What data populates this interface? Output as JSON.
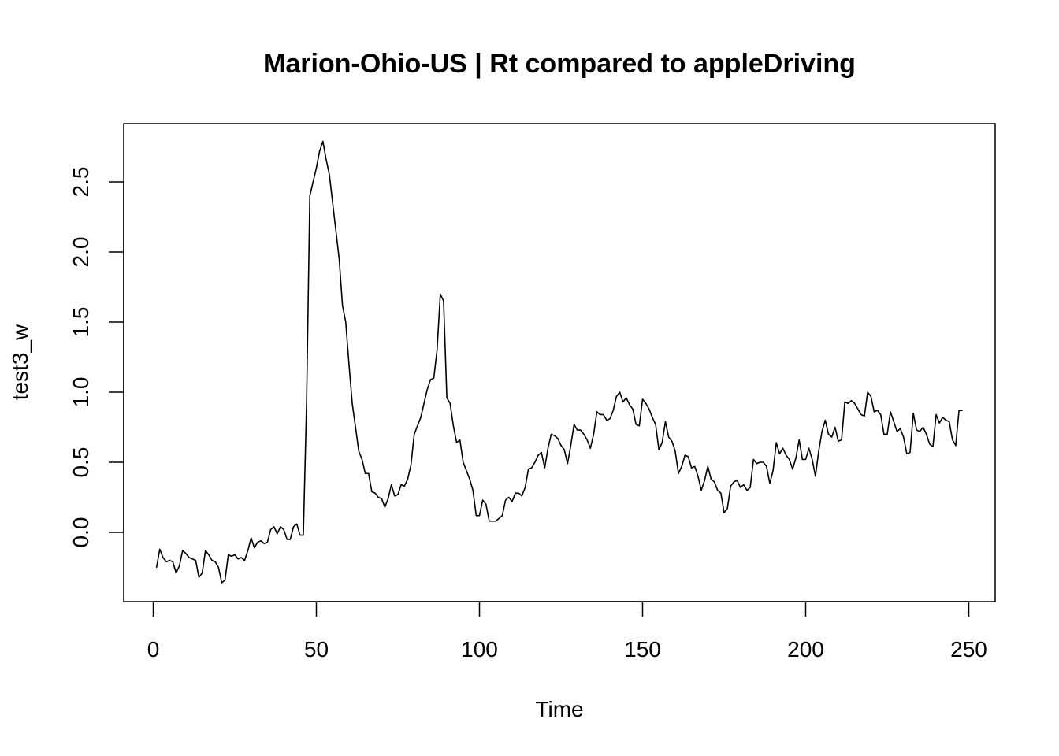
{
  "chart_data": {
    "type": "line",
    "title": "Marion-Ohio-US | Rt compared to appleDriving",
    "xlabel": "Time",
    "ylabel": "test3_w",
    "xlim": [
      0,
      250
    ],
    "ylim": [
      -0.35,
      2.8
    ],
    "x_ticks": [
      0,
      50,
      100,
      150,
      200,
      250
    ],
    "y_ticks": [
      0.0,
      0.5,
      1.0,
      1.5,
      2.0,
      2.5
    ],
    "x_tick_labels": [
      "0",
      "50",
      "100",
      "150",
      "200",
      "250"
    ],
    "y_tick_labels": [
      "0.0",
      "0.5",
      "1.0",
      "1.5",
      "2.0",
      "2.5"
    ],
    "grid": false,
    "legend": "none",
    "series": [
      {
        "color": "#000000",
        "x": [
          1,
          2,
          3,
          4,
          5,
          6,
          7,
          8,
          9,
          10,
          11,
          12,
          13,
          14,
          15,
          16,
          17,
          18,
          19,
          20,
          21,
          22,
          23,
          24,
          25,
          26,
          27,
          28,
          29,
          30,
          31,
          32,
          33,
          34,
          35,
          36,
          37,
          38,
          39,
          40,
          41,
          42,
          43,
          44,
          45,
          46,
          47,
          48,
          49,
          50,
          51,
          52,
          53,
          54,
          55,
          56,
          57,
          58,
          59,
          60,
          61,
          62,
          63,
          64,
          65,
          66,
          67,
          68,
          69,
          70,
          71,
          72,
          73,
          74,
          75,
          76,
          77,
          78,
          79,
          80,
          81,
          82,
          83,
          84,
          85,
          86,
          87,
          88,
          89,
          90,
          91,
          92,
          93,
          94,
          95,
          96,
          97,
          98,
          99,
          100,
          101,
          102,
          103,
          104,
          105,
          106,
          107,
          108,
          109,
          110,
          111,
          112,
          113,
          114,
          115,
          116,
          117,
          118,
          119,
          120,
          121,
          122,
          123,
          124,
          125,
          126,
          127,
          128,
          129,
          130,
          131,
          132,
          133,
          134,
          135,
          136,
          137,
          138,
          139,
          140,
          141,
          142,
          143,
          144,
          145,
          146,
          147,
          148,
          149,
          150,
          151,
          152,
          153,
          154,
          155,
          156,
          157,
          158,
          159,
          160,
          161,
          162,
          163,
          164,
          165,
          166,
          167,
          168,
          169,
          170,
          171,
          172,
          173,
          174,
          175,
          176,
          177,
          178,
          179,
          180,
          181,
          182,
          183,
          184,
          185,
          186,
          187,
          188,
          189,
          190,
          191,
          192,
          193,
          194,
          195,
          196,
          197,
          198,
          199,
          200,
          201,
          202,
          203,
          204,
          205,
          206,
          207,
          208,
          209,
          210,
          211,
          212,
          213,
          214,
          215,
          216,
          217,
          218,
          219,
          220,
          221,
          222,
          223,
          224,
          225,
          226,
          227,
          228,
          229,
          230,
          231,
          232,
          233,
          234,
          235,
          236,
          237,
          238,
          239,
          240,
          241,
          242,
          243,
          244,
          245,
          246,
          247,
          248
        ],
        "y": [
          -0.25,
          -0.12,
          -0.18,
          -0.21,
          -0.2,
          -0.21,
          -0.29,
          -0.24,
          -0.13,
          -0.15,
          -0.18,
          -0.19,
          -0.2,
          -0.32,
          -0.29,
          -0.13,
          -0.16,
          -0.2,
          -0.21,
          -0.25,
          -0.36,
          -0.34,
          -0.16,
          -0.17,
          -0.16,
          -0.19,
          -0.18,
          -0.2,
          -0.13,
          -0.04,
          -0.11,
          -0.07,
          -0.06,
          -0.08,
          -0.07,
          0.02,
          0.04,
          -0.01,
          0.04,
          0.02,
          -0.05,
          -0.05,
          0.04,
          0.06,
          -0.02,
          -0.02,
          0.92,
          2.4,
          2.5,
          2.6,
          2.72,
          2.79,
          2.66,
          2.55,
          2.35,
          2.15,
          1.95,
          1.62,
          1.5,
          1.2,
          0.92,
          0.75,
          0.58,
          0.52,
          0.42,
          0.42,
          0.29,
          0.28,
          0.25,
          0.24,
          0.18,
          0.24,
          0.34,
          0.26,
          0.27,
          0.34,
          0.33,
          0.38,
          0.48,
          0.7,
          0.76,
          0.82,
          0.92,
          1.02,
          1.09,
          1.1,
          1.3,
          1.7,
          1.65,
          0.96,
          0.92,
          0.76,
          0.64,
          0.66,
          0.5,
          0.44,
          0.38,
          0.3,
          0.12,
          0.12,
          0.23,
          0.2,
          0.08,
          0.08,
          0.08,
          0.1,
          0.12,
          0.23,
          0.25,
          0.22,
          0.28,
          0.28,
          0.26,
          0.32,
          0.45,
          0.46,
          0.5,
          0.55,
          0.57,
          0.46,
          0.6,
          0.7,
          0.69,
          0.67,
          0.62,
          0.59,
          0.49,
          0.62,
          0.77,
          0.73,
          0.73,
          0.7,
          0.66,
          0.6,
          0.7,
          0.86,
          0.84,
          0.84,
          0.8,
          0.81,
          0.87,
          0.97,
          1.0,
          0.93,
          0.96,
          0.91,
          0.88,
          0.77,
          0.76,
          0.95,
          0.92,
          0.88,
          0.82,
          0.77,
          0.59,
          0.64,
          0.79,
          0.68,
          0.65,
          0.58,
          0.42,
          0.47,
          0.55,
          0.54,
          0.46,
          0.47,
          0.4,
          0.3,
          0.37,
          0.47,
          0.38,
          0.36,
          0.3,
          0.28,
          0.14,
          0.17,
          0.33,
          0.36,
          0.37,
          0.32,
          0.34,
          0.3,
          0.32,
          0.52,
          0.49,
          0.5,
          0.5,
          0.47,
          0.35,
          0.44,
          0.64,
          0.56,
          0.6,
          0.55,
          0.52,
          0.45,
          0.53,
          0.66,
          0.52,
          0.52,
          0.6,
          0.52,
          0.4,
          0.58,
          0.72,
          0.8,
          0.7,
          0.68,
          0.75,
          0.65,
          0.66,
          0.93,
          0.92,
          0.94,
          0.92,
          0.88,
          0.84,
          0.83,
          1.0,
          0.97,
          0.86,
          0.87,
          0.84,
          0.7,
          0.7,
          0.86,
          0.79,
          0.72,
          0.74,
          0.68,
          0.56,
          0.57,
          0.85,
          0.73,
          0.72,
          0.75,
          0.7,
          0.63,
          0.61,
          0.84,
          0.78,
          0.82,
          0.8,
          0.79,
          0.66,
          0.62,
          0.87,
          0.87
        ]
      }
    ]
  }
}
